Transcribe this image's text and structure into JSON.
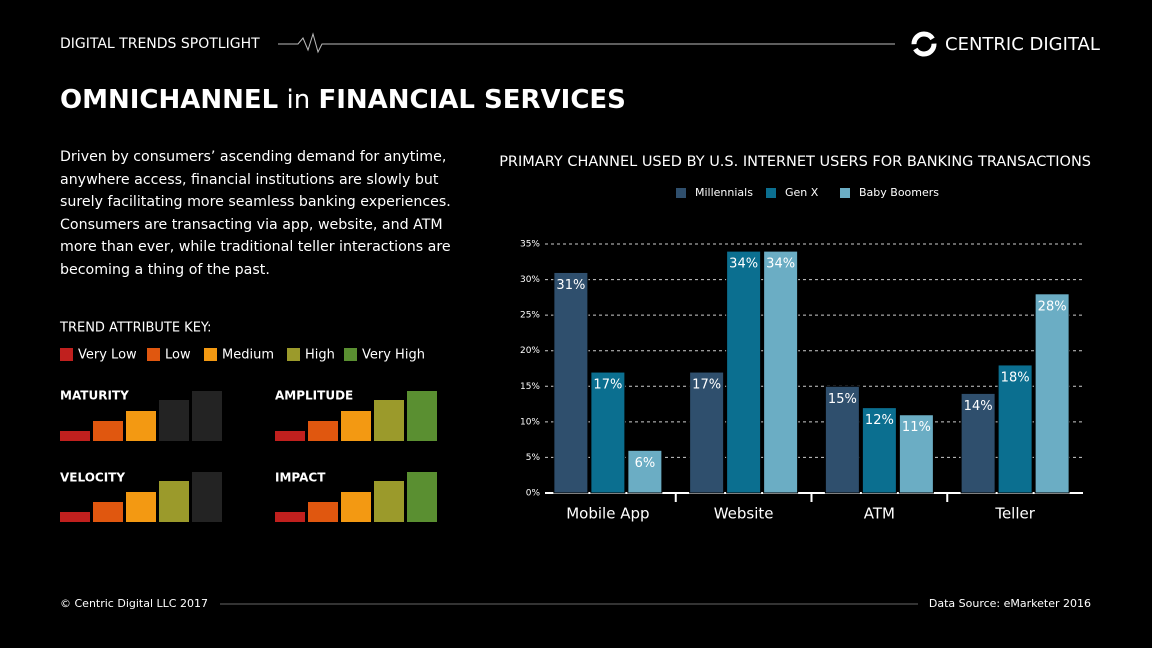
{
  "header": {
    "label": "DIGITAL TRENDS SPOTLIGHT",
    "brand": "CENTRIC DIGITAL"
  },
  "title": {
    "parts": [
      "OMNICHANNEL",
      "in",
      "FINANCIAL SERVICES"
    ]
  },
  "intro": "Driven by consumers’ ascending demand for anytime, anywhere access, financial institutions are slowly but surely facilitating more seamless banking experiences. Consumers are transacting via app, website, and ATM more than ever, while traditional teller interactions are becoming a thing of the past.",
  "trend_key": {
    "title": "TREND ATTRIBUTE KEY:",
    "levels": [
      {
        "name": "Very Low",
        "color": "#c0201e"
      },
      {
        "name": "Low",
        "color": "#e0570f"
      },
      {
        "name": "Medium",
        "color": "#f39912"
      },
      {
        "name": "High",
        "color": "#9b9a2b"
      },
      {
        "name": "Very High",
        "color": "#5a8f31"
      }
    ],
    "inactive_color": "#232323"
  },
  "attributes": [
    {
      "name": "MATURITY",
      "level": 3
    },
    {
      "name": "AMPLITUDE",
      "level": 5
    },
    {
      "name": "VELOCITY",
      "level": 4
    },
    {
      "name": "IMPACT",
      "level": 5
    }
  ],
  "chart_data": {
    "type": "bar",
    "title": "PRIMARY CHANNEL USED BY U.S. INTERNET USERS FOR BANKING TRANSACTIONS",
    "categories": [
      "Mobile App",
      "Website",
      "ATM",
      "Teller"
    ],
    "series": [
      {
        "name": "Millennials",
        "color": "#2f4f6d",
        "values": [
          31,
          17,
          15,
          14
        ],
        "value_labels": [
          "31%",
          "17%",
          "15%",
          "14%"
        ]
      },
      {
        "name": "Gen X",
        "color": "#0b6f90",
        "values": [
          17,
          34,
          12,
          18
        ],
        "value_labels": [
          "17%",
          "34%",
          "12%",
          "18%"
        ]
      },
      {
        "name": "Baby Boomers",
        "color": "#6badc4",
        "values": [
          6,
          34,
          11,
          28
        ],
        "value_labels": [
          "6%",
          "34%",
          "11%",
          "28%"
        ]
      }
    ],
    "ylim": [
      0,
      35
    ],
    "yticks": [
      {
        "value": 0,
        "label": "0%"
      },
      {
        "value": 5,
        "label": "5%"
      },
      {
        "value": 10,
        "label": "10%"
      },
      {
        "value": 15,
        "label": "15%"
      },
      {
        "value": 20,
        "label": "20%"
      },
      {
        "value": 25,
        "label": "25%"
      },
      {
        "value": 30,
        "label": "30%"
      },
      {
        "value": 35,
        "label": "35%"
      }
    ],
    "grid": true
  },
  "footer": {
    "copyright": "© Centric Digital LLC 2017",
    "source": "Data Source: eMarketer 2016"
  }
}
